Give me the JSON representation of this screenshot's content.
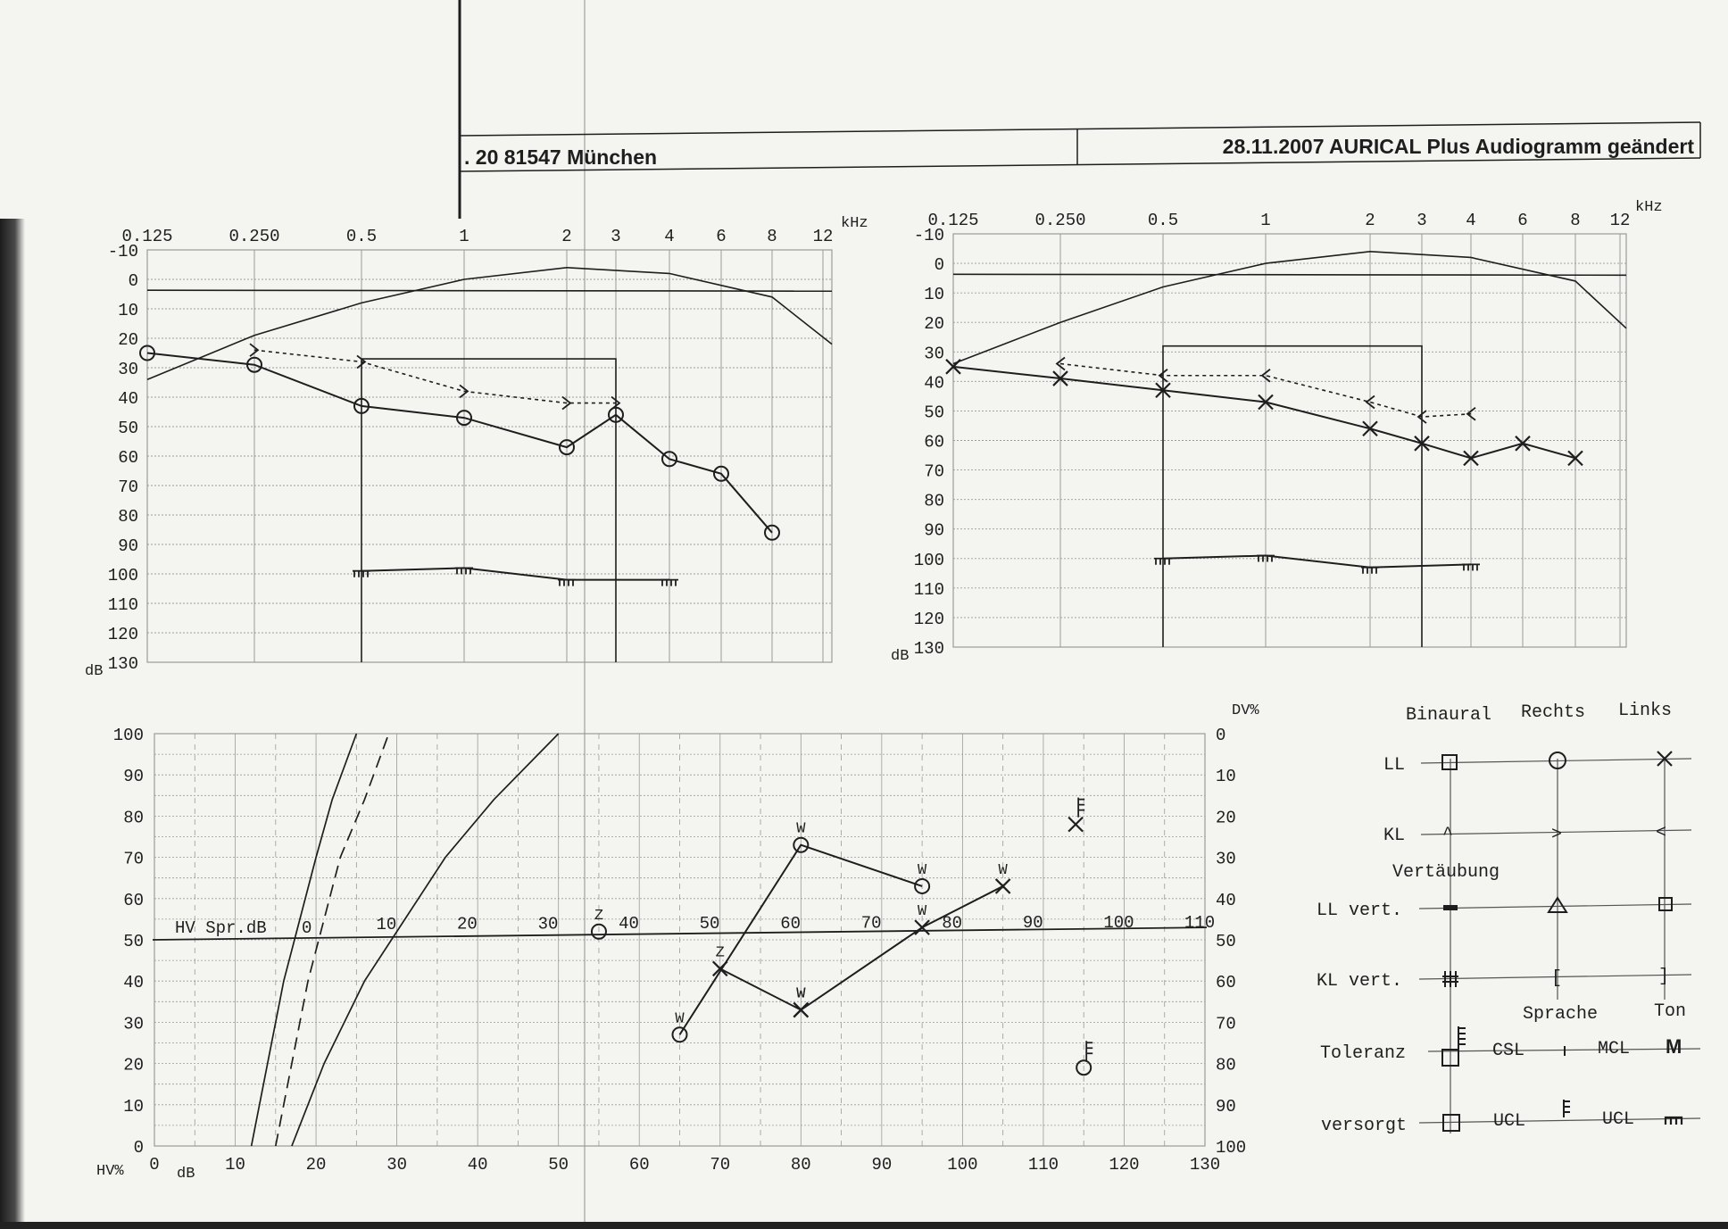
{
  "header": {
    "address": ". 20   81547 München",
    "date_title": "28.11.2007  AURICAL Plus Audiogramm geändert"
  },
  "colors": {
    "ink": "#1e1e1e",
    "grid": "#9a9a9a",
    "paper": "#f4f4f1"
  },
  "chart_data": [
    {
      "type": "line",
      "id": "audiogram-right",
      "xlabel": "kHz",
      "ylabel": "dB",
      "x_ticks": [
        "0.125",
        "0.250",
        "0.5",
        "1",
        "2",
        "3",
        "4",
        "6",
        "8",
        "12"
      ],
      "y_ticks": [
        "-10",
        "0",
        "10",
        "20",
        "30",
        "40",
        "50",
        "60",
        "70",
        "80",
        "90",
        "100",
        "110",
        "120",
        "130"
      ],
      "ylim": [
        -10,
        130
      ],
      "series": [
        {
          "key": "ll",
          "marker": "circle",
          "style": "solid",
          "x": [
            0.125,
            0.25,
            0.5,
            1,
            2,
            3,
            4,
            6,
            8
          ],
          "y": [
            25,
            29,
            43,
            47,
            57,
            46,
            61,
            66,
            86
          ]
        },
        {
          "key": "kl",
          "marker": "chevron-right",
          "style": "dotted",
          "x": [
            0.25,
            0.5,
            1,
            2,
            3
          ],
          "y": [
            24,
            28,
            38,
            42,
            42
          ]
        },
        {
          "key": "ucl",
          "marker": "comb",
          "style": "solid",
          "x": [
            0.5,
            1,
            2,
            4
          ],
          "y": [
            99,
            98,
            102,
            102
          ]
        }
      ],
      "speech_curve": {
        "x": [
          0.125,
          0.25,
          0.5,
          1,
          2,
          4,
          8,
          12
        ],
        "y": [
          34,
          19,
          8,
          0,
          -4,
          -2,
          6,
          22
        ]
      },
      "reference_line_y": 4,
      "box": {
        "x": [
          0.5,
          3
        ],
        "y_top": 27,
        "y_bottom": 130
      }
    },
    {
      "type": "line",
      "id": "audiogram-left",
      "xlabel": "kHz",
      "ylabel": "dB",
      "x_ticks": [
        "0.125",
        "0.250",
        "0.5",
        "1",
        "2",
        "3",
        "4",
        "6",
        "8",
        "12"
      ],
      "y_ticks": [
        "-10",
        "0",
        "10",
        "20",
        "30",
        "40",
        "50",
        "60",
        "70",
        "80",
        "90",
        "100",
        "110",
        "120",
        "130"
      ],
      "ylim": [
        -10,
        130
      ],
      "series": [
        {
          "key": "ll",
          "marker": "x",
          "style": "solid",
          "x": [
            0.125,
            0.25,
            0.5,
            1,
            2,
            3,
            4,
            6,
            8
          ],
          "y": [
            35,
            39,
            43,
            47,
            56,
            61,
            66,
            61,
            66
          ]
        },
        {
          "key": "kl",
          "marker": "chevron-left",
          "style": "dotted",
          "x": [
            0.25,
            0.5,
            1,
            2,
            3,
            4
          ],
          "y": [
            34,
            38,
            38,
            47,
            52,
            51
          ]
        },
        {
          "key": "ucl",
          "marker": "comb",
          "style": "solid",
          "x": [
            0.5,
            1,
            2,
            4
          ],
          "y": [
            100,
            99,
            103,
            102
          ]
        }
      ],
      "speech_curve": {
        "x": [
          0.125,
          0.25,
          0.5,
          1,
          2,
          4,
          8,
          12
        ],
        "y": [
          34,
          20,
          8,
          0,
          -4,
          -2,
          6,
          22
        ]
      },
      "reference_line_y": 4,
      "box": {
        "x": [
          0.5,
          3
        ],
        "y_top": 28,
        "y_bottom": 130
      }
    },
    {
      "type": "line",
      "id": "speech-audiogram",
      "xlabel": "dB",
      "ylabel": "HV%",
      "y2label": "DV%",
      "hv_axis_label": "HV Spr.dB",
      "x_ticks": [
        "0",
        "10",
        "20",
        "30",
        "40",
        "50",
        "60",
        "70",
        "80",
        "90",
        "100",
        "110",
        "120",
        "130"
      ],
      "y_ticks": [
        "0",
        "10",
        "20",
        "30",
        "40",
        "50",
        "60",
        "70",
        "80",
        "90",
        "100"
      ],
      "y2_ticks": [
        "0",
        "10",
        "20",
        "30",
        "40",
        "50",
        "60",
        "70",
        "80",
        "90",
        "100"
      ],
      "hv_ticks": [
        "0",
        "10",
        "20",
        "30",
        "40",
        "50",
        "60",
        "70",
        "80",
        "90",
        "100",
        "110"
      ],
      "xlim": [
        0,
        130
      ],
      "ylim": [
        0,
        100
      ],
      "series": [
        {
          "key": "rechts-w",
          "marker": "circle",
          "x": [
            65,
            80,
            95
          ],
          "y": [
            27,
            73,
            63
          ],
          "labels": [
            "W",
            "W",
            "W"
          ]
        },
        {
          "key": "rechts-z",
          "marker": "circle",
          "x": [
            55
          ],
          "y": [
            52
          ],
          "labels": [
            "Z"
          ]
        },
        {
          "key": "links-z",
          "marker": "x",
          "x": [
            70,
            80
          ],
          "y": [
            43,
            33
          ],
          "labels": [
            "Z",
            "W"
          ]
        },
        {
          "key": "links-w",
          "marker": "x",
          "x": [
            80,
            95,
            105
          ],
          "y": [
            33,
            53,
            63
          ],
          "labels": [
            "W",
            "W",
            "W"
          ]
        }
      ],
      "tolerance_markers": [
        {
          "marker": "x-comb",
          "x": 114,
          "y": 78
        },
        {
          "marker": "circle-comb",
          "x": 115,
          "y": 19
        }
      ],
      "norm_curves": [
        {
          "style": "solid",
          "x": [
            12,
            14,
            16,
            18,
            20,
            22,
            25
          ],
          "y": [
            0,
            20,
            40,
            55,
            70,
            84,
            100
          ]
        },
        {
          "style": "dashed",
          "x": [
            15,
            17,
            19,
            21,
            23,
            26,
            29
          ],
          "y": [
            0,
            20,
            40,
            55,
            70,
            84,
            100
          ]
        },
        {
          "style": "solid",
          "x": [
            17,
            21,
            26,
            31,
            36,
            42,
            50
          ],
          "y": [
            0,
            20,
            40,
            55,
            70,
            84,
            100
          ]
        }
      ]
    }
  ],
  "legend": {
    "columns": [
      "Binaural",
      "Rechts",
      "Links"
    ],
    "ll": "LL",
    "kl": "KL",
    "vert_title": "Vertäubung",
    "ll_vert": "LL vert.",
    "kl_vert": "KL vert.",
    "sprache": "Sprache",
    "ton": "Ton",
    "toleranz": "Toleranz",
    "csl": "CSL",
    "mcl": "MCL",
    "mcl_glyph": "M",
    "versorgt": "versorgt",
    "ucl": "UCL",
    "ucl2": "UCL",
    "chevron_up": "^",
    "chevron_right": ">",
    "chevron_left": "<",
    "bracket_left": "[",
    "bracket_right": "]"
  }
}
